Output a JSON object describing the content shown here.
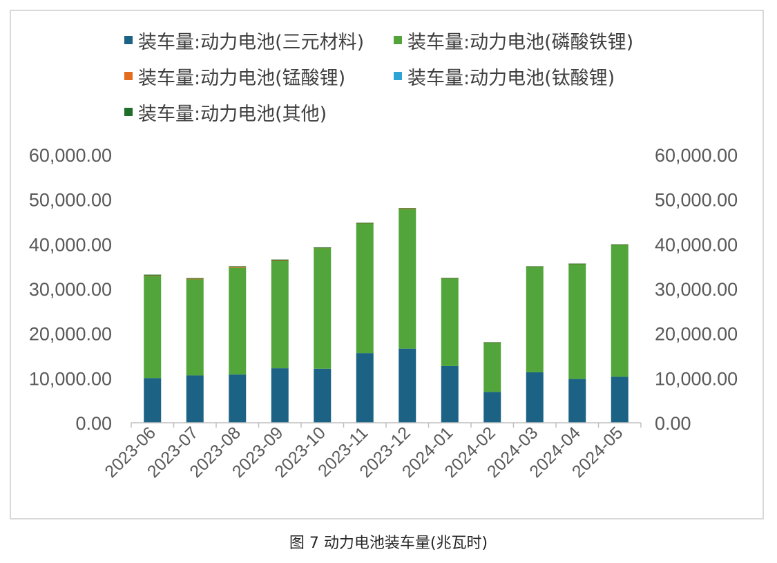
{
  "caption": "图 7 动力电池装车量(兆瓦时)",
  "colors": {
    "ncm": "#1b6285",
    "lfp": "#52a53b",
    "lmo": "#e46c1f",
    "lto": "#2ea3d6",
    "other": "#1f6e2a"
  },
  "legend": [
    {
      "key": "ncm",
      "label": "装车量:动力电池(三元材料)"
    },
    {
      "key": "lfp",
      "label": "装车量:动力电池(磷酸铁锂)"
    },
    {
      "key": "lmo",
      "label": "装车量:动力电池(锰酸锂)"
    },
    {
      "key": "lto",
      "label": "装车量:动力电池(钛酸锂)"
    },
    {
      "key": "other",
      "label": "装车量:动力电池(其他)"
    }
  ],
  "chart_data": {
    "type": "bar",
    "stacked": true,
    "categories": [
      "2023-06",
      "2023-07",
      "2023-08",
      "2023-09",
      "2023-10",
      "2023-11",
      "2023-12",
      "2024-01",
      "2024-02",
      "2024-03",
      "2024-04",
      "2024-05"
    ],
    "series": [
      {
        "key": "ncm",
        "name": "装车量:动力电池(三元材料)",
        "values": [
          10000,
          10600,
          10800,
          12200,
          12100,
          15600,
          16600,
          12700,
          6900,
          11300,
          9800,
          10300
        ]
      },
      {
        "key": "lfp",
        "name": "装车量:动力电池(磷酸铁锂)",
        "values": [
          22900,
          21600,
          23900,
          24100,
          27100,
          29100,
          31300,
          19700,
          11100,
          23700,
          25800,
          29600
        ]
      },
      {
        "key": "lmo",
        "name": "装车量:动力电池(锰酸锂)",
        "values": [
          60,
          40,
          200,
          40,
          20,
          40,
          40,
          10,
          10,
          10,
          10,
          20
        ]
      },
      {
        "key": "lto",
        "name": "装车量:动力电池(钛酸锂)",
        "values": [
          0,
          0,
          0,
          0,
          0,
          0,
          0,
          0,
          0,
          0,
          0,
          0
        ]
      },
      {
        "key": "other",
        "name": "装车量:动力电池(其他)",
        "values": [
          200,
          150,
          150,
          200,
          30,
          30,
          120,
          20,
          20,
          20,
          20,
          20
        ]
      }
    ],
    "ylim": [
      0,
      60000
    ],
    "yticks": [
      "0.00",
      "10,000.00",
      "20,000.00",
      "30,000.00",
      "40,000.00",
      "50,000.00",
      "60,000.00"
    ],
    "secondary_yticks": [
      "0.00",
      "10,000.00",
      "20,000.00",
      "30,000.00",
      "40,000.00",
      "50,000.00",
      "60,000.00"
    ],
    "grid": false,
    "legend_position": "top"
  }
}
